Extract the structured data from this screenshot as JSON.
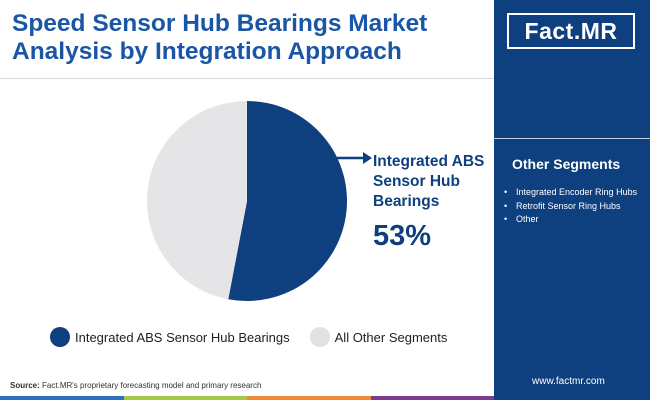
{
  "title": "Speed Sensor Hub Bearings Market Analysis by Integration Approach",
  "logo": {
    "text_main": "Fact",
    "text_accent": ".MR"
  },
  "chart_data": {
    "type": "pie",
    "categories": [
      "Integrated ABS Sensor Hub Bearings",
      "All Other Segments"
    ],
    "values": [
      53,
      47
    ],
    "colors": [
      "#0e3f7e",
      "#e5e5e7"
    ],
    "value_unit": "%"
  },
  "callout": {
    "label": "Integrated ABS Sensor Hub Bearings",
    "value": "53%"
  },
  "legend": [
    {
      "label": "Integrated ABS Sensor Hub Bearings",
      "color": "#0e3f7e"
    },
    {
      "label": "All Other Segments",
      "color": "#e1e1e3"
    }
  ],
  "other_segments": {
    "title": "Other Segments",
    "items": [
      "Integrated Encoder Ring Hubs",
      "Retrofit Sensor Ring Hubs",
      "Other"
    ]
  },
  "source": {
    "label": "Source:",
    "text": "Fact.MR's proprietary forecasting model and primary research"
  },
  "website": "www.factmr.com",
  "bottom_bar_colors": [
    "#2e6fc0",
    "#a6c84a",
    "#f08a3a",
    "#7a3d8e"
  ],
  "colors": {
    "brand_navy": "#0e3f7e",
    "title_blue": "#1a56a6"
  }
}
